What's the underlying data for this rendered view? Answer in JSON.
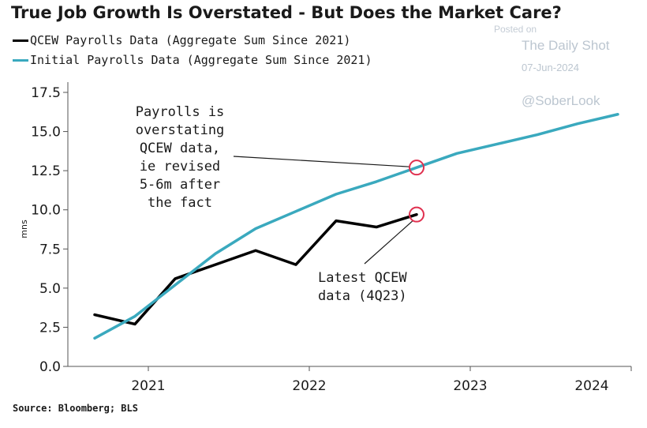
{
  "chart_data": {
    "type": "line",
    "title": "True Job Growth Is Overstated - But Does the Market Care?",
    "ylabel": "mns",
    "xlabel": "",
    "ylim": [
      0,
      17.5
    ],
    "y_ticks": [
      "0.0",
      "2.5",
      "5.0",
      "7.5",
      "10.0",
      "12.5",
      "15.0",
      "17.5"
    ],
    "x_ticks": [
      "2021",
      "2022",
      "2023",
      "2024"
    ],
    "grid": false,
    "legend_placement": "top-left",
    "series": [
      {
        "name": "QCEW Payrolls Data (Aggregate Sum Since 2021)",
        "color": "#000000",
        "x": [
          "2020-09",
          "2020-12",
          "2021-03",
          "2021-06",
          "2021-09",
          "2021-12",
          "2022-03",
          "2022-06",
          "2022-09"
        ],
        "y": [
          3.3,
          2.7,
          5.6,
          6.5,
          7.4,
          6.5,
          9.3,
          8.9,
          9.7
        ]
      },
      {
        "name": "Initial Payrolls Data (Aggregate Sum Since 2021)",
        "color": "#3aa9be",
        "x": [
          "2020-09",
          "2020-12",
          "2021-03",
          "2021-06",
          "2021-09",
          "2021-12",
          "2022-03",
          "2022-06",
          "2022-09",
          "2022-12",
          "2023-03",
          "2023-06",
          "2023-09",
          "2023-12"
        ],
        "y": [
          1.8,
          3.2,
          5.2,
          7.2,
          8.8,
          9.9,
          11.0,
          11.8,
          12.7,
          13.6,
          14.2,
          14.8,
          15.5,
          16.1
        ]
      }
    ],
    "annotations": [
      {
        "text": [
          "Payrolls is",
          "overstating",
          "QCEW data,",
          "ie revised",
          "5-6m after",
          "the fact"
        ],
        "points_to": {
          "x": "2022-09",
          "y": 12.7
        }
      },
      {
        "text": [
          "Latest QCEW",
          "data (4Q23)"
        ],
        "points_to": {
          "x": "2022-09",
          "y": 9.7
        }
      }
    ]
  },
  "watermark": {
    "posted_on": "Posted on",
    "publisher": "The Daily Shot",
    "date": "07-Jun-2024",
    "handle": "@SoberLook"
  },
  "source": "Source: Bloomberg; BLS"
}
